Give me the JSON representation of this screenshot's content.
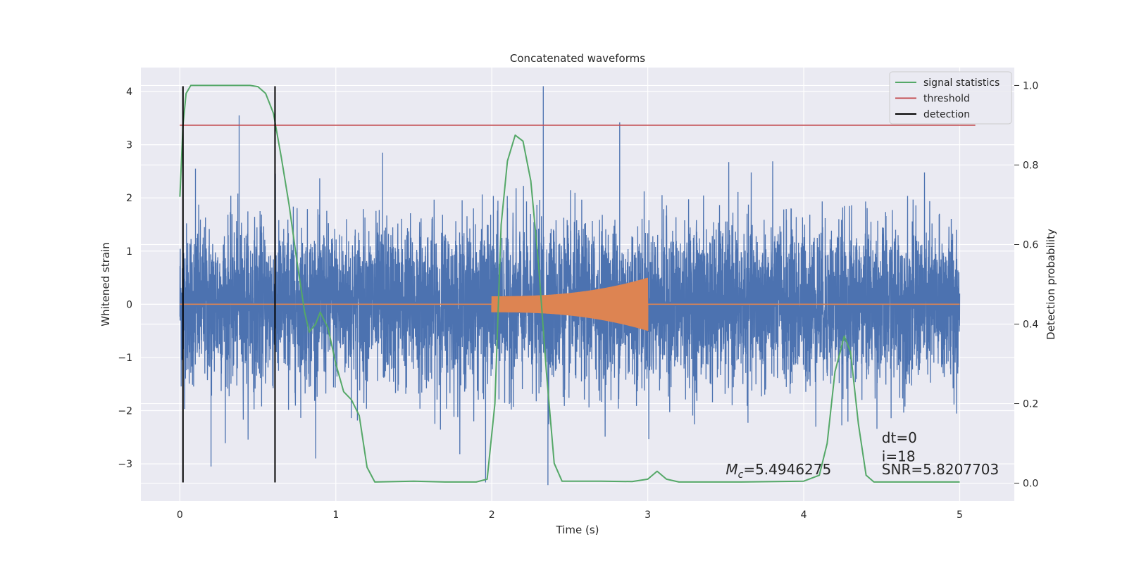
{
  "chart_data": {
    "type": "line",
    "title": "Concatenated waveforms",
    "xlabel": "Time (s)",
    "ylabel": "Whitened strain",
    "ylabel_right": "Detection probability",
    "xlim": [
      -0.25,
      5.35
    ],
    "ylim": [
      -3.7,
      4.45
    ],
    "ylim_right": [
      -0.045,
      1.045
    ],
    "x_ticks": [
      0,
      1,
      2,
      3,
      4,
      5
    ],
    "x_tick_labels": [
      "0",
      "1",
      "2",
      "3",
      "4",
      "5"
    ],
    "y_ticks": [
      -3,
      -2,
      -1,
      0,
      1,
      2,
      3,
      4
    ],
    "y_tick_labels": [
      "−3",
      "−2",
      "−1",
      "0",
      "1",
      "2",
      "3",
      "4"
    ],
    "y_right_ticks": [
      0.0,
      0.2,
      0.4,
      0.6,
      0.8,
      1.0
    ],
    "y_right_tick_labels": [
      "0.0",
      "0.2",
      "0.4",
      "0.6",
      "0.8",
      "1.0"
    ],
    "grid": true,
    "legend_position": "top-right",
    "series": [
      {
        "name": "whitened strain",
        "axis": "left",
        "color": "#4c72b0",
        "x_range": [
          0,
          5
        ],
        "amplitude_envelope": [
          -3.4,
          4.1
        ],
        "peaks": [
          [
            0.38,
            3.55
          ],
          [
            2.33,
            4.1
          ],
          [
            2.82,
            3.42
          ],
          [
            0.61,
            3.2
          ],
          [
            0.1,
            2.55
          ],
          [
            1.3,
            2.85
          ],
          [
            2.36,
            -3.4
          ],
          [
            1.96,
            -3.35
          ],
          [
            0.2,
            -3.05
          ]
        ]
      },
      {
        "name": "injected waveform",
        "axis": "left",
        "color": "#dd8452",
        "x_range": [
          0,
          5
        ],
        "chirp_start": 2.0,
        "chirp_end": 3.0,
        "chirp_amplitude": [
          0.15,
          0.5
        ]
      },
      {
        "name": "signal statistics",
        "axis": "right",
        "color": "#55a868",
        "points": [
          [
            0,
            0.72
          ],
          [
            0.02,
            0.9
          ],
          [
            0.04,
            0.98
          ],
          [
            0.07,
            1.0
          ],
          [
            0.15,
            1.0
          ],
          [
            0.3,
            1.0
          ],
          [
            0.45,
            1.0
          ],
          [
            0.5,
            0.997
          ],
          [
            0.55,
            0.98
          ],
          [
            0.6,
            0.93
          ],
          [
            0.65,
            0.82
          ],
          [
            0.7,
            0.7
          ],
          [
            0.75,
            0.56
          ],
          [
            0.8,
            0.43
          ],
          [
            0.83,
            0.38
          ],
          [
            0.87,
            0.4
          ],
          [
            0.9,
            0.43
          ],
          [
            0.95,
            0.39
          ],
          [
            1.0,
            0.3
          ],
          [
            1.05,
            0.23
          ],
          [
            1.1,
            0.21
          ],
          [
            1.15,
            0.17
          ],
          [
            1.2,
            0.04
          ],
          [
            1.25,
            0.003
          ],
          [
            1.5,
            0.005
          ],
          [
            1.7,
            0.003
          ],
          [
            1.9,
            0.003
          ],
          [
            1.97,
            0.01
          ],
          [
            2.02,
            0.2
          ],
          [
            2.06,
            0.65
          ],
          [
            2.1,
            0.81
          ],
          [
            2.15,
            0.875
          ],
          [
            2.2,
            0.86
          ],
          [
            2.25,
            0.76
          ],
          [
            2.3,
            0.55
          ],
          [
            2.35,
            0.28
          ],
          [
            2.4,
            0.05
          ],
          [
            2.45,
            0.005
          ],
          [
            2.7,
            0.005
          ],
          [
            2.9,
            0.004
          ],
          [
            3.0,
            0.01
          ],
          [
            3.06,
            0.03
          ],
          [
            3.12,
            0.01
          ],
          [
            3.2,
            0.003
          ],
          [
            3.6,
            0.003
          ],
          [
            4.0,
            0.005
          ],
          [
            4.1,
            0.02
          ],
          [
            4.15,
            0.1
          ],
          [
            4.2,
            0.28
          ],
          [
            4.26,
            0.37
          ],
          [
            4.3,
            0.33
          ],
          [
            4.35,
            0.15
          ],
          [
            4.4,
            0.02
          ],
          [
            4.45,
            0.003
          ],
          [
            5.0,
            0.003
          ]
        ]
      },
      {
        "name": "threshold",
        "axis": "right",
        "color": "#c44e52",
        "x_range": [
          0,
          5.1
        ],
        "value": 0.9
      },
      {
        "name": "detection",
        "axis": "left",
        "color": "#000000",
        "x": [
          0.02,
          0.61
        ],
        "y_range": [
          -3.35,
          4.1
        ]
      }
    ],
    "legend": [
      {
        "label": "signal statistics",
        "color": "#55a868"
      },
      {
        "label": "threshold",
        "color": "#c44e52"
      },
      {
        "label": "detection",
        "color": "#000000"
      }
    ],
    "annotations": [
      {
        "prefix": "M",
        "subscript": "c",
        "value": "=5.4946275",
        "x": 3.5,
        "y": -3.2
      },
      {
        "text": "dt=0",
        "x": 4.5,
        "y": -2.6
      },
      {
        "text": "i=18",
        "x": 4.5,
        "y": -2.95
      },
      {
        "text": "SNR=5.8207703",
        "x": 4.5,
        "y": -3.2
      }
    ]
  }
}
